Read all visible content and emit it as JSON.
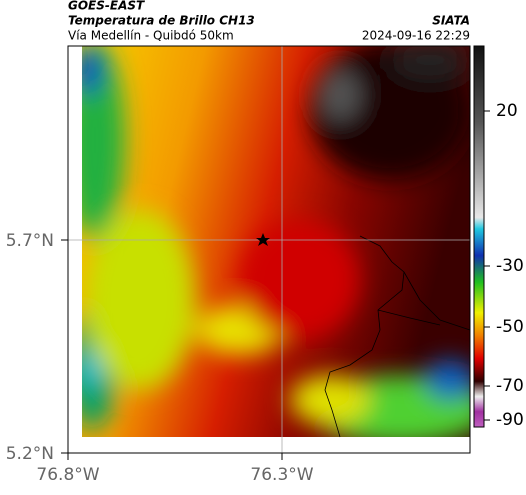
{
  "header": {
    "source": "GOES-EAST",
    "title": "Temperatura de Brillo CH13",
    "org": "SIATA",
    "route": "Vía Medellín - Quibdó 50km",
    "timestamp": "2024-09-16 22:29"
  },
  "axes": {
    "x_ticks": [
      "76.8°W",
      "76.3°W"
    ],
    "y_ticks": [
      "5.7°N",
      "5.2°N"
    ]
  },
  "colorbar": {
    "ticks": [
      20,
      -30,
      -50,
      -70,
      -90
    ]
  }
}
